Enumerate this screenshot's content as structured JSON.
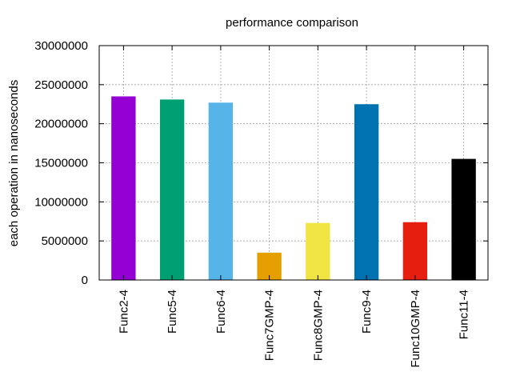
{
  "chart_data": {
    "type": "bar",
    "title": "performance comparison",
    "xlabel": "",
    "ylabel": "each operation in nanoseconds",
    "ylim": [
      0,
      30000000
    ],
    "yticks": [
      0,
      5000000,
      10000000,
      15000000,
      20000000,
      25000000,
      30000000
    ],
    "ytick_labels": [
      "0",
      "5000000",
      "10000000",
      "15000000",
      "20000000",
      "25000000",
      "30000000"
    ],
    "grid": true,
    "categories": [
      "Func2-4",
      "Func5-4",
      "Func6-4",
      "Func7GMP-4",
      "Func8GMP-4",
      "Func9-4",
      "Func10GMP-4",
      "Func11-4"
    ],
    "values": [
      23500000,
      23100000,
      22700000,
      3500000,
      7300000,
      22500000,
      7400000,
      15500000
    ],
    "colors": [
      "#9400d3",
      "#009e73",
      "#56b4e9",
      "#e69f00",
      "#f0e442",
      "#0072b2",
      "#e51e10",
      "#000000"
    ]
  }
}
